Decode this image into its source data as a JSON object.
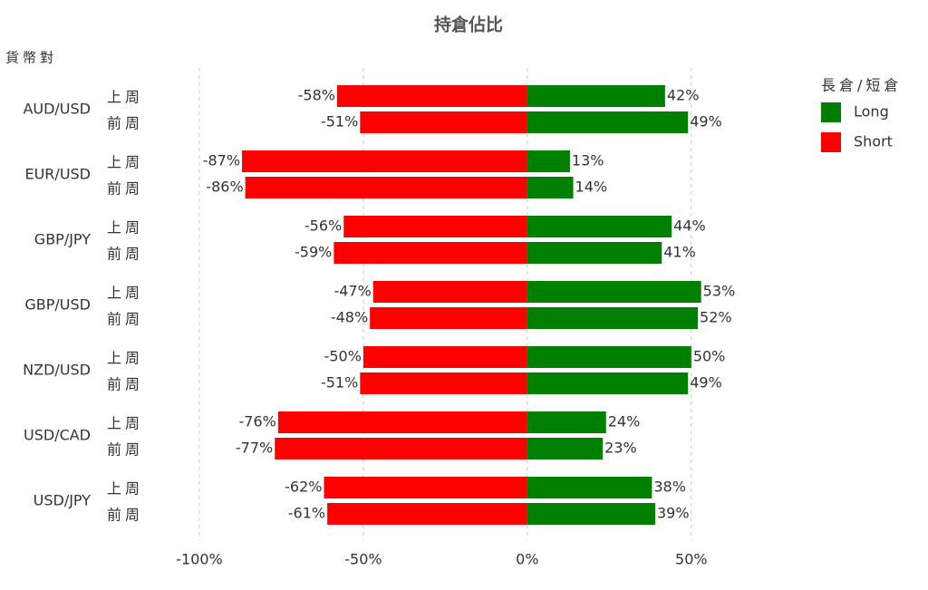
{
  "chart_data": {
    "type": "diverging_bar",
    "title": "持倉佔比",
    "y_label": "貨幣對",
    "groups": [
      "AUD/USD",
      "EUR/USD",
      "GBP/JPY",
      "GBP/USD",
      "NZD/USD",
      "USD/CAD",
      "USD/JPY"
    ],
    "categories": [
      "上周",
      "前周",
      "上周",
      "前周",
      "上周",
      "前周",
      "上周",
      "前周",
      "上周",
      "前周",
      "上周",
      "前周",
      "上周",
      "前周"
    ],
    "legend_title": "長倉/短倉",
    "legend": "top-right",
    "grid": true,
    "series": [
      {
        "name": "Long",
        "color": "#008000",
        "values": [
          42,
          49,
          13,
          14,
          44,
          41,
          53,
          52,
          50,
          49,
          24,
          23,
          38,
          39
        ],
        "value_labels": [
          "42%",
          "49%",
          "13%",
          "14%",
          "44%",
          "41%",
          "53%",
          "52%",
          "50%",
          "49%",
          "24%",
          "23%",
          "38%",
          "39%"
        ]
      },
      {
        "name": "Short",
        "color": "#ff0000",
        "values": [
          -58,
          -51,
          -87,
          -86,
          -56,
          -59,
          -47,
          -48,
          -50,
          -51,
          -76,
          -77,
          -62,
          -61
        ],
        "value_labels": [
          "-58%",
          "-51%",
          "-87%",
          "-86%",
          "-56%",
          "-59%",
          "-47%",
          "-48%",
          "-50%",
          "-51%",
          "-76%",
          "-77%",
          "-62%",
          "-61%"
        ]
      }
    ],
    "xlim": [
      -100,
      60
    ],
    "xticks": [
      {
        "value": -100,
        "label": "-100%"
      },
      {
        "value": -50,
        "label": "-50%"
      },
      {
        "value": 0,
        "label": "0%"
      },
      {
        "value": 50,
        "label": "50%"
      }
    ]
  }
}
